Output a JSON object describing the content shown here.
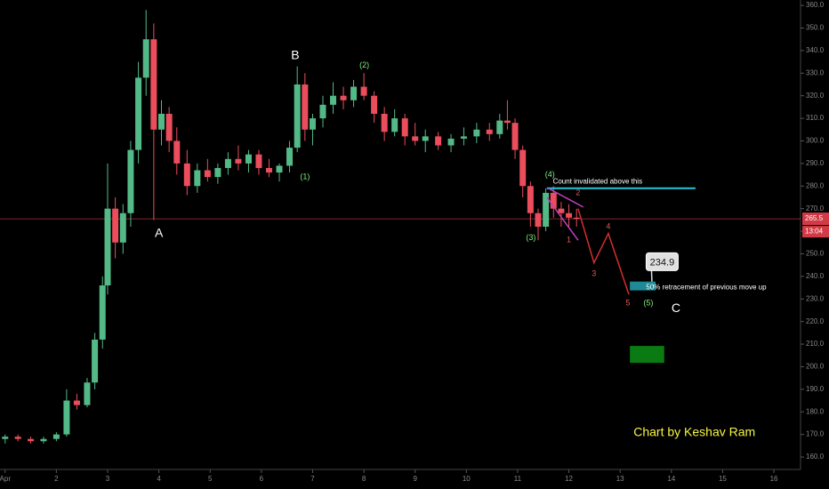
{
  "chart_data": {
    "type": "candlestick",
    "up_color": "#53b987",
    "down_color": "#eb4d5c",
    "xlim": [
      0.9,
      16.52
    ],
    "xticks": [
      {
        "value": 1,
        "label": "Apr"
      },
      2,
      3,
      4,
      5,
      6,
      7,
      8,
      9,
      10,
      11,
      12,
      13,
      14,
      15,
      16
    ],
    "ylim": [
      154.5,
      362.4
    ],
    "yticks": [
      {
        "value": 160,
        "label": "160.0"
      },
      {
        "value": 170,
        "label": "170.0"
      },
      {
        "value": 180,
        "label": "180.0"
      },
      {
        "value": 190,
        "label": "190.0"
      },
      {
        "value": 200,
        "label": "200.0"
      },
      {
        "value": 210,
        "label": "210.0"
      },
      {
        "value": 220,
        "label": "220.0"
      },
      {
        "value": 230,
        "label": "230.0"
      },
      {
        "value": 240,
        "label": "240.0"
      },
      {
        "value": 250,
        "label": "250.0"
      },
      {
        "value": 260,
        "label": "260.0"
      },
      {
        "value": 270,
        "label": "270.0"
      },
      {
        "value": 280,
        "label": "280.0"
      },
      {
        "value": 290,
        "label": "290.0"
      },
      {
        "value": 300,
        "label": "300.0"
      },
      {
        "value": 310,
        "label": "310.0"
      },
      {
        "value": 320,
        "label": "320.0"
      },
      {
        "value": 330,
        "label": "330.0"
      },
      {
        "value": 340,
        "label": "340.0"
      },
      {
        "value": 350,
        "label": "350.0"
      },
      {
        "value": 360,
        "label": "360.0"
      }
    ],
    "candles": {
      "x": [
        1.0,
        1.25,
        1.5,
        1.75,
        2.0,
        2.2,
        2.4,
        2.6,
        2.75,
        2.9,
        3.0,
        3.15,
        3.3,
        3.45,
        3.6,
        3.75,
        3.9,
        4.05,
        4.2,
        4.35,
        4.55,
        4.75,
        4.95,
        5.15,
        5.35,
        5.55,
        5.75,
        5.95,
        6.15,
        6.35,
        6.55,
        6.7,
        6.85,
        7.0,
        7.2,
        7.4,
        7.6,
        7.8,
        8.0,
        8.2,
        8.4,
        8.6,
        8.8,
        9.0,
        9.2,
        9.45,
        9.7,
        9.95,
        10.2,
        10.45,
        10.65,
        10.8,
        10.95,
        11.1,
        11.25,
        11.4,
        11.55,
        11.7,
        11.85,
        12.0,
        12.15
      ],
      "open": [
        168,
        169,
        168,
        167,
        168,
        170,
        185,
        183,
        193,
        212,
        236,
        270,
        255,
        268,
        296,
        328,
        345,
        305,
        312,
        300,
        290,
        280,
        287,
        284,
        288,
        292,
        290,
        294,
        288,
        286,
        289,
        297,
        325,
        305,
        310,
        316,
        320,
        318,
        324,
        320,
        312,
        304,
        310,
        302,
        300,
        302,
        298,
        301,
        302,
        305,
        303,
        309,
        308,
        296,
        280,
        268,
        262,
        277,
        270,
        268,
        266
      ],
      "high": [
        170,
        170,
        169,
        169,
        171,
        190,
        188,
        195,
        215,
        240,
        290,
        275,
        272,
        300,
        335,
        358,
        352,
        318,
        315,
        306,
        296,
        290,
        292,
        290,
        295,
        298,
        296,
        296,
        292,
        290,
        300,
        333,
        330,
        312,
        320,
        326,
        324,
        327,
        330,
        322,
        315,
        314,
        312,
        308,
        305,
        304,
        303,
        306,
        308,
        308,
        312,
        318,
        310,
        298,
        282,
        270,
        279,
        280,
        273,
        272,
        270
      ],
      "low": [
        166,
        167,
        166,
        166,
        167,
        169,
        181,
        182,
        190,
        208,
        232,
        248,
        250,
        262,
        290,
        320,
        265,
        298,
        295,
        285,
        276,
        277,
        282,
        281,
        285,
        287,
        286,
        285,
        284,
        282,
        286,
        295,
        300,
        298,
        306,
        312,
        314,
        315,
        318,
        308,
        300,
        302,
        298,
        298,
        295,
        296,
        295,
        298,
        299,
        300,
        301,
        305,
        292,
        275,
        262,
        256,
        260,
        266,
        262,
        262,
        262
      ],
      "close": [
        169,
        168,
        167,
        168,
        170,
        185,
        183,
        193,
        212,
        236,
        270,
        255,
        268,
        296,
        328,
        345,
        305,
        312,
        300,
        290,
        280,
        287,
        284,
        288,
        292,
        290,
        294,
        288,
        286,
        289,
        297,
        325,
        305,
        310,
        316,
        320,
        318,
        324,
        320,
        312,
        304,
        310,
        302,
        300,
        302,
        298,
        301,
        302,
        305,
        303,
        309,
        308,
        296,
        280,
        268,
        262,
        277,
        270,
        268,
        266,
        265.5
      ]
    },
    "last_price": 265.5,
    "countdown": "13:04",
    "invalidation_line": {
      "x": [
        11.57,
        14.47
      ],
      "y": [
        279,
        279
      ],
      "color": "#26c6da"
    },
    "trendlines": [
      {
        "x": [
          11.6,
          12.28
        ],
        "y": [
          279,
          270.7
        ],
        "color": "#c040c0"
      },
      {
        "x": [
          11.57,
          12.18
        ],
        "y": [
          275,
          256
        ],
        "color": "#c040c0"
      }
    ],
    "projection": {
      "x": [
        12.18,
        12.49,
        12.77,
        13.17
      ],
      "y": [
        270,
        246,
        259,
        232
      ],
      "color": "#d32f2f"
    },
    "zones": [
      {
        "x": [
          13.19,
          13.69
        ],
        "y": [
          233.8,
          237.7
        ],
        "color": "#1f8a96"
      },
      {
        "x": [
          13.19,
          13.86
        ],
        "y": [
          201.7,
          209.2
        ],
        "color": "#0a7a12"
      }
    ],
    "target": {
      "value": 234.9,
      "x": 13.82,
      "y": 246.5
    },
    "annotations": [
      {
        "text": "A",
        "x": 4.0,
        "y": 259,
        "color": "#ffffff",
        "size": 14
      },
      {
        "text": "B",
        "x": 6.66,
        "y": 337.6,
        "color": "#ffffff",
        "size": 14
      },
      {
        "text": "C",
        "x": 14.09,
        "y": 225.7,
        "color": "#ffffff",
        "size": 14
      },
      {
        "text": "(1)",
        "x": 6.85,
        "y": 284,
        "color": "#7cf07c",
        "size": 9
      },
      {
        "text": "(2)",
        "x": 8.01,
        "y": 333.5,
        "color": "#7cf07c",
        "size": 9
      },
      {
        "text": "(3)",
        "x": 11.26,
        "y": 257,
        "color": "#7cf07c",
        "size": 9
      },
      {
        "text": "(4)",
        "x": 11.63,
        "y": 285,
        "color": "#7cf07c",
        "size": 9
      },
      {
        "text": "(5)",
        "x": 13.55,
        "y": 228,
        "color": "#7cf07c",
        "size": 9
      },
      {
        "text": "1",
        "x": 12.0,
        "y": 256,
        "color": "#e05a5a",
        "size": 9
      },
      {
        "text": "2",
        "x": 12.18,
        "y": 277,
        "color": "#e05a5a",
        "size": 9
      },
      {
        "text": "3",
        "x": 12.49,
        "y": 241,
        "color": "#e05a5a",
        "size": 9
      },
      {
        "text": "4",
        "x": 12.77,
        "y": 262,
        "color": "#e05a5a",
        "size": 9
      },
      {
        "text": "5",
        "x": 13.15,
        "y": 228,
        "color": "#e05a5a",
        "size": 9
      },
      {
        "text": "Count invalidated above this",
        "x": 12.56,
        "y": 282,
        "color": "#ffffff",
        "size": 8
      },
      {
        "text": "50% retracement of previous move up",
        "x": 14.68,
        "y": 235,
        "color": "#ffffff",
        "size": 8
      },
      {
        "text": "Chart by Keshav Ram",
        "x": 14.45,
        "y": 170.8,
        "color": "#f5f542",
        "size": 14
      }
    ]
  }
}
